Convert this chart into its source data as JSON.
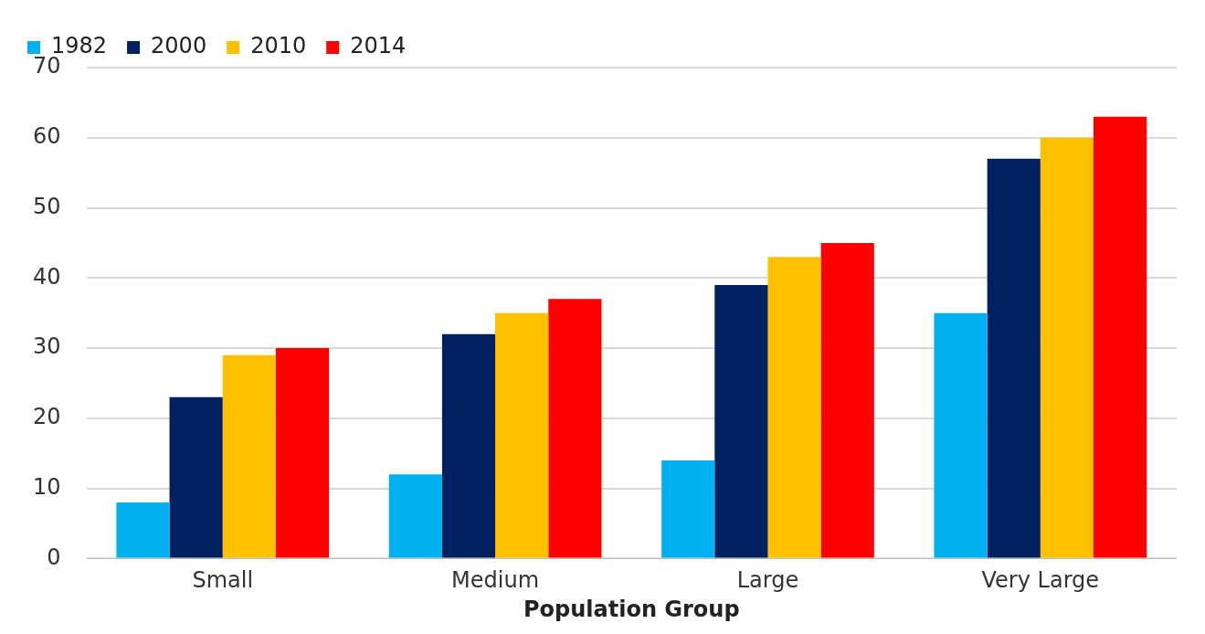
{
  "chart_data": {
    "type": "bar",
    "xlabel": "Population Group",
    "categories": [
      "Small",
      "Medium",
      "Large",
      "Very Large"
    ],
    "series": [
      {
        "name": "1982",
        "color": "#00b0f0",
        "values": [
          8,
          12,
          14,
          35
        ]
      },
      {
        "name": "2000",
        "color": "#002060",
        "values": [
          23,
          32,
          39,
          57
        ]
      },
      {
        "name": "2010",
        "color": "#ffc000",
        "values": [
          29,
          35,
          43,
          60
        ]
      },
      {
        "name": "2014",
        "color": "#ff0000",
        "values": [
          30,
          37,
          45,
          63
        ]
      }
    ],
    "ylim": [
      0,
      70
    ],
    "yticks": [
      0,
      10,
      20,
      30,
      40,
      50,
      60,
      70
    ],
    "grid": "y",
    "legend": "top left"
  }
}
